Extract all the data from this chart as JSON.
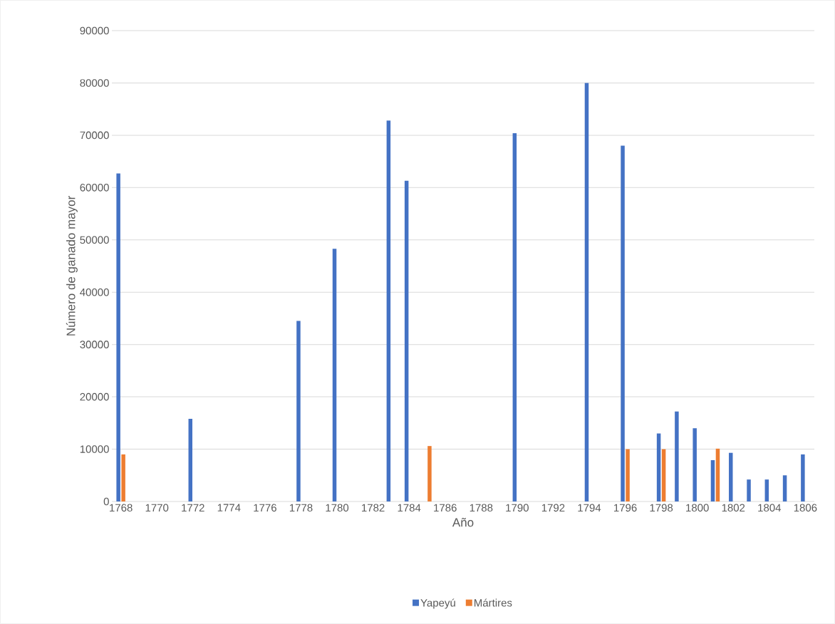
{
  "chart_data": {
    "type": "bar",
    "xlabel": "Año",
    "ylabel": "Número de ganado mayor",
    "categories": [
      "1768",
      null,
      "1770",
      null,
      "1772",
      null,
      "1774",
      null,
      "1776",
      null,
      "1778",
      null,
      "1780",
      null,
      "1782",
      null,
      "1784",
      null,
      "1786",
      null,
      "1788",
      null,
      "1790",
      null,
      "1792",
      null,
      "1794",
      null,
      "1796",
      null,
      "1798",
      null,
      "1800",
      null,
      "1802",
      null,
      "1804",
      null,
      "1806"
    ],
    "series": [
      {
        "name": "Yapeyú",
        "color": "#4472c4",
        "values": [
          62700,
          null,
          null,
          null,
          15800,
          null,
          null,
          null,
          null,
          null,
          34500,
          null,
          48300,
          null,
          null,
          72800,
          61300,
          null,
          null,
          null,
          null,
          null,
          70400,
          null,
          null,
          null,
          80000,
          null,
          68000,
          null,
          13000,
          17200,
          14000,
          7900,
          9300,
          4200,
          4200,
          5000,
          9000
        ]
      },
      {
        "name": "Mártires",
        "color": "#ed7d31",
        "values": [
          9000,
          null,
          null,
          null,
          null,
          null,
          null,
          null,
          null,
          null,
          null,
          null,
          null,
          null,
          null,
          null,
          null,
          10600,
          null,
          null,
          null,
          null,
          null,
          null,
          null,
          null,
          null,
          null,
          10000,
          null,
          10000,
          null,
          null,
          10100,
          null,
          null,
          null,
          null,
          null
        ]
      }
    ],
    "ylim": [
      0,
      90000
    ],
    "yticks": [
      0,
      10000,
      20000,
      30000,
      40000,
      50000,
      60000,
      70000,
      80000,
      90000
    ],
    "grid": "y",
    "legend": "bottom"
  }
}
